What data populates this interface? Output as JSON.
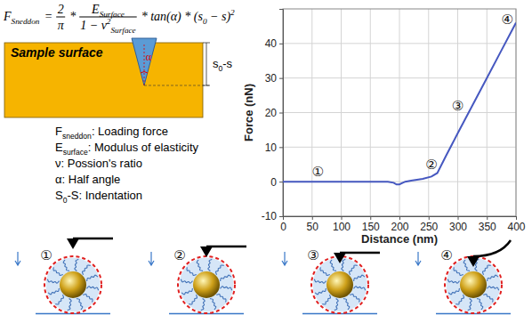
{
  "formula": {
    "items": [
      {
        "parts": [
          {
            "t": "F"
          },
          {
            "t": "Sneddon",
            "style": "sub"
          }
        ]
      },
      {
        "parts": [
          {
            "t": "="
          }
        ]
      },
      {
        "num": [
          {
            "t": "2"
          }
        ],
        "den": [
          {
            "t": "π"
          }
        ]
      },
      {
        "parts": [
          {
            "t": "*"
          }
        ]
      },
      {
        "num": [
          {
            "t": "E"
          },
          {
            "t": "Surface",
            "style": "sub"
          }
        ],
        "den": [
          {
            "t": "1 − v"
          },
          {
            "t": "2",
            "style": "sup"
          },
          {
            "t": "Surface",
            "style": "sub"
          }
        ]
      },
      {
        "parts": [
          {
            "t": "* tan(α) * (s"
          },
          {
            "t": "0",
            "style": "sub"
          },
          {
            "t": " − s)"
          },
          {
            "t": "2",
            "style": "sup"
          }
        ]
      }
    ]
  },
  "diagram": {
    "surface_label": "Sample surface",
    "angle_label": "α",
    "indent_label": [
      {
        "t": "s"
      },
      {
        "t": "0",
        "style": "sub"
      },
      {
        "t": "-s"
      }
    ]
  },
  "legend": [
    {
      "symbol": "F",
      "sub": "sneddon",
      "text": ": Loading force"
    },
    {
      "symbol": "E",
      "sub": "surface",
      "text": ": Modulus of elasticity"
    },
    {
      "symbol": "ν",
      "text": ": Possion's ratio"
    },
    {
      "symbol": "α",
      "text": ": Half angle"
    },
    {
      "symbol": "S",
      "sub": "0",
      "text": "-S: Indentation"
    }
  ],
  "chart_data": {
    "type": "line",
    "x_label": "Distance (nm)",
    "y_label": "Force (nN)",
    "x": [
      0,
      50,
      100,
      150,
      180,
      190,
      195,
      200,
      205,
      210,
      220,
      240,
      255,
      265,
      280,
      300,
      325,
      350,
      375,
      400
    ],
    "values": [
      0,
      0,
      0,
      0,
      0,
      -0.3,
      -0.8,
      -0.8,
      -0.4,
      0,
      0.3,
      0.8,
      1.5,
      2.5,
      7.5,
      14,
      22,
      30,
      38,
      46
    ],
    "color": "#4658c0",
    "xlim": [
      0,
      400
    ],
    "ylim": [
      -10,
      50
    ],
    "xticks": [
      0,
      50,
      100,
      150,
      200,
      250,
      300,
      350,
      400
    ],
    "yticks": [
      -10,
      0,
      10,
      20,
      30,
      40
    ],
    "grid": true,
    "annotations": [
      {
        "text": "①",
        "x": 60,
        "y": 3
      },
      {
        "text": "②",
        "x": 255,
        "y": 5
      },
      {
        "text": "③",
        "x": 300,
        "y": 22
      },
      {
        "text": "④",
        "x": 385,
        "y": 47
      }
    ]
  },
  "panels": [
    {
      "label": "①"
    },
    {
      "label": "②"
    },
    {
      "label": "③"
    },
    {
      "label": "④"
    }
  ]
}
